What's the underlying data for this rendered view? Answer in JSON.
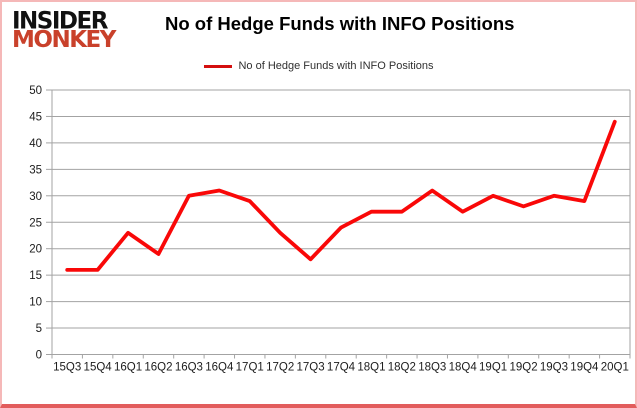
{
  "header": {
    "logo_line1": "INSIDER",
    "logo_line2": "MONKEY",
    "title": "No of Hedge Funds with INFO Positions"
  },
  "legend": {
    "label": "No of Hedge Funds with INFO Positions",
    "swatch_color": "#d40f0f"
  },
  "chart_data": {
    "type": "line",
    "title": "No of Hedge Funds with INFO Positions",
    "categories": [
      "15Q3",
      "15Q4",
      "16Q1",
      "16Q2",
      "16Q3",
      "16Q4",
      "17Q1",
      "17Q2",
      "17Q3",
      "17Q4",
      "18Q1",
      "18Q2",
      "18Q3",
      "18Q4",
      "19Q1",
      "19Q2",
      "19Q3",
      "19Q4",
      "20Q1"
    ],
    "series": [
      {
        "name": "No of Hedge Funds with INFO Positions",
        "values": [
          16,
          16,
          23,
          19,
          30,
          31,
          29,
          23,
          18,
          24,
          27,
          27,
          31,
          27,
          30,
          28,
          30,
          29,
          44
        ],
        "color": "#f90808"
      }
    ],
    "xlabel": "",
    "ylabel": "",
    "ylim": [
      0,
      50
    ],
    "ytick_step": 5,
    "grid": true,
    "legend_position": "top",
    "gridline_color": "#a3a3a3",
    "axis_label_color": "#1c1c1c"
  }
}
